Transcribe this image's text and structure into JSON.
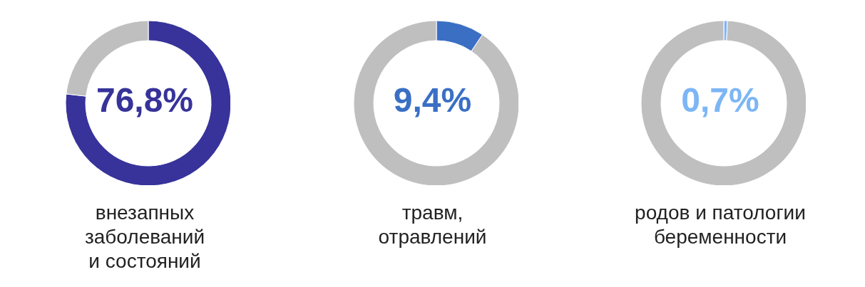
{
  "chart_data": [
    {
      "type": "donut",
      "title": "внезапных\nзаболеваний\nи состояний",
      "categories": [
        null,
        null
      ],
      "values": [
        76.8,
        23.2
      ],
      "colors": [
        "#37339a",
        "#bfbfbf"
      ],
      "annotations": [
        "76,8%"
      ]
    },
    {
      "type": "donut",
      "title": "травм,\nотравлений",
      "categories": [
        null,
        null
      ],
      "values": [
        9.4,
        90.6
      ],
      "colors": [
        "#3a6fc4",
        "#bfbfbf"
      ],
      "annotations": [
        "9,4%"
      ]
    },
    {
      "type": "donut",
      "title": "родов и патологии\nбеременности",
      "categories": [
        null,
        null
      ],
      "values": [
        0.7,
        99.3
      ],
      "colors": [
        "#7cb6f5",
        "#bfbfbf"
      ],
      "annotations": [
        "0,7%"
      ]
    }
  ]
}
